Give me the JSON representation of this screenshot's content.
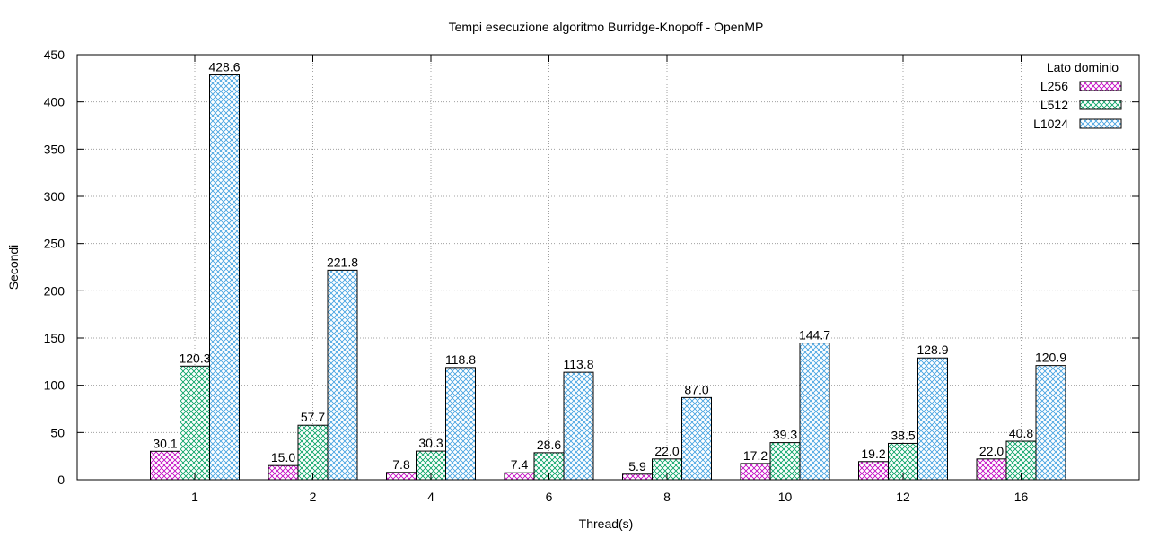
{
  "chart_data": {
    "type": "bar",
    "title": "Tempi esecuzione algoritmo Burridge-Knopoff - OpenMP",
    "xlabel": "Thread(s)",
    "ylabel": "Secondi",
    "ylim": [
      0,
      450
    ],
    "yticks": [
      0,
      50,
      100,
      150,
      200,
      250,
      300,
      350,
      400,
      450
    ],
    "grid": true,
    "legend_title": "Lato dominio",
    "legend_position": "top-right",
    "categories": [
      "1",
      "2",
      "4",
      "6",
      "8",
      "10",
      "12",
      "16"
    ],
    "series": [
      {
        "name": "L256",
        "values": [
          30.1,
          15.0,
          7.8,
          7.4,
          5.9,
          17.2,
          19.2,
          22.0
        ],
        "labels": [
          "30.1",
          "15.0",
          "7.8",
          "7.4",
          "5.9",
          "17.2",
          "19.2",
          "22.0"
        ],
        "color": "#c000c0"
      },
      {
        "name": "L512",
        "values": [
          120.3,
          57.7,
          30.3,
          28.6,
          22.0,
          39.3,
          38.5,
          40.8
        ],
        "labels": [
          "120.3",
          "57.7",
          "30.3",
          "28.6",
          "22.0",
          "39.3",
          "38.5",
          "40.8"
        ],
        "color": "#00a060"
      },
      {
        "name": "L1024",
        "values": [
          428.6,
          221.8,
          118.8,
          113.8,
          87.0,
          144.7,
          128.9,
          120.9
        ],
        "labels": [
          "428.6",
          "221.8",
          "118.8",
          "113.8",
          "87.0",
          "144.7",
          "128.9",
          "120.9"
        ],
        "color": "#40a0e0"
      }
    ]
  }
}
